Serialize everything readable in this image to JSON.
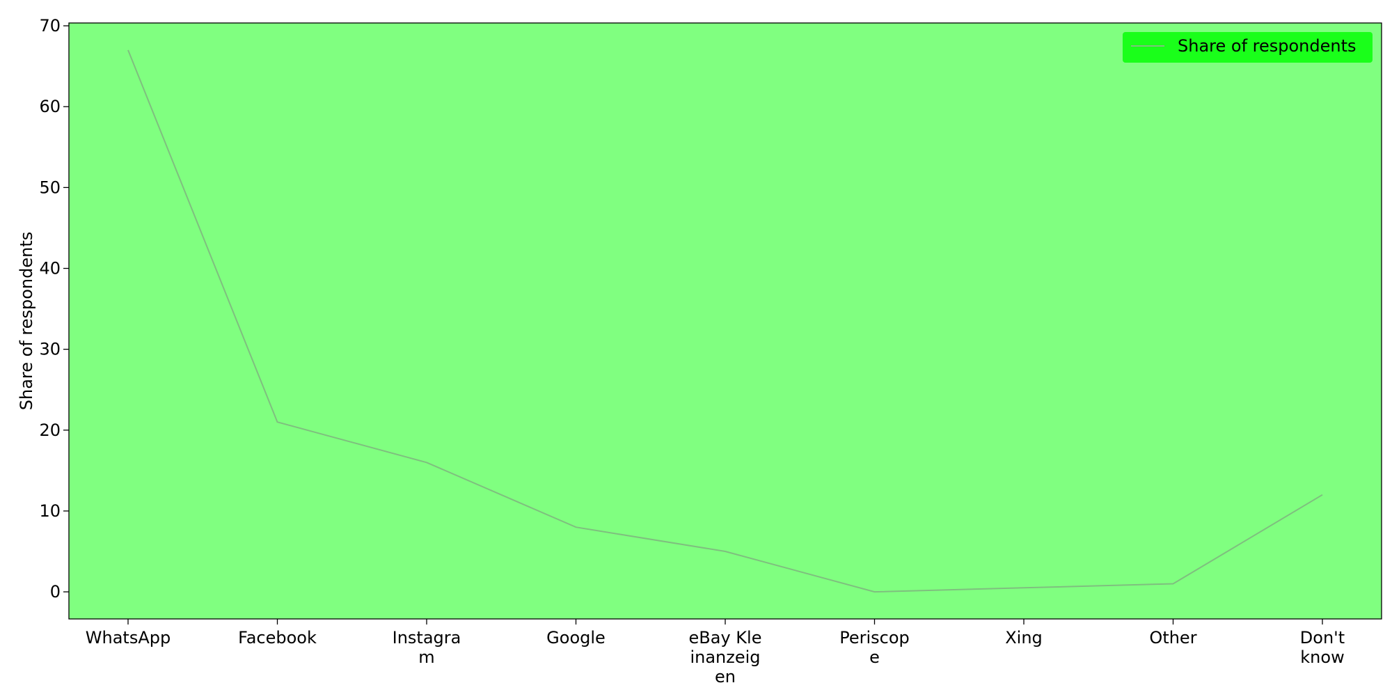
{
  "chart_data": {
    "type": "line",
    "title": "",
    "xlabel": "",
    "ylabel": "Share of respondents",
    "categories": [
      [
        "WhatsApp"
      ],
      [
        "Facebook"
      ],
      [
        "Instagra",
        "m"
      ],
      [
        "Google"
      ],
      [
        "eBay Kle",
        "inanzeig",
        "en"
      ],
      [
        "Periscop",
        "e"
      ],
      [
        "Xing"
      ],
      [
        "Other"
      ],
      [
        "Don't",
        "know"
      ]
    ],
    "series": [
      {
        "name": "Share of respondents",
        "values": [
          67,
          21,
          16,
          8,
          5,
          0,
          0.5,
          1,
          12
        ]
      }
    ],
    "ylim": [
      -3.35,
      70.35
    ],
    "yticks": [
      0,
      10,
      20,
      30,
      40,
      50,
      60,
      70
    ],
    "grid": false,
    "legend": "top-right",
    "colors": {
      "plot_background": "#80ff80",
      "line": "#7fbf7f",
      "legend_background": "#1aff1a",
      "axis": "#000000"
    }
  }
}
